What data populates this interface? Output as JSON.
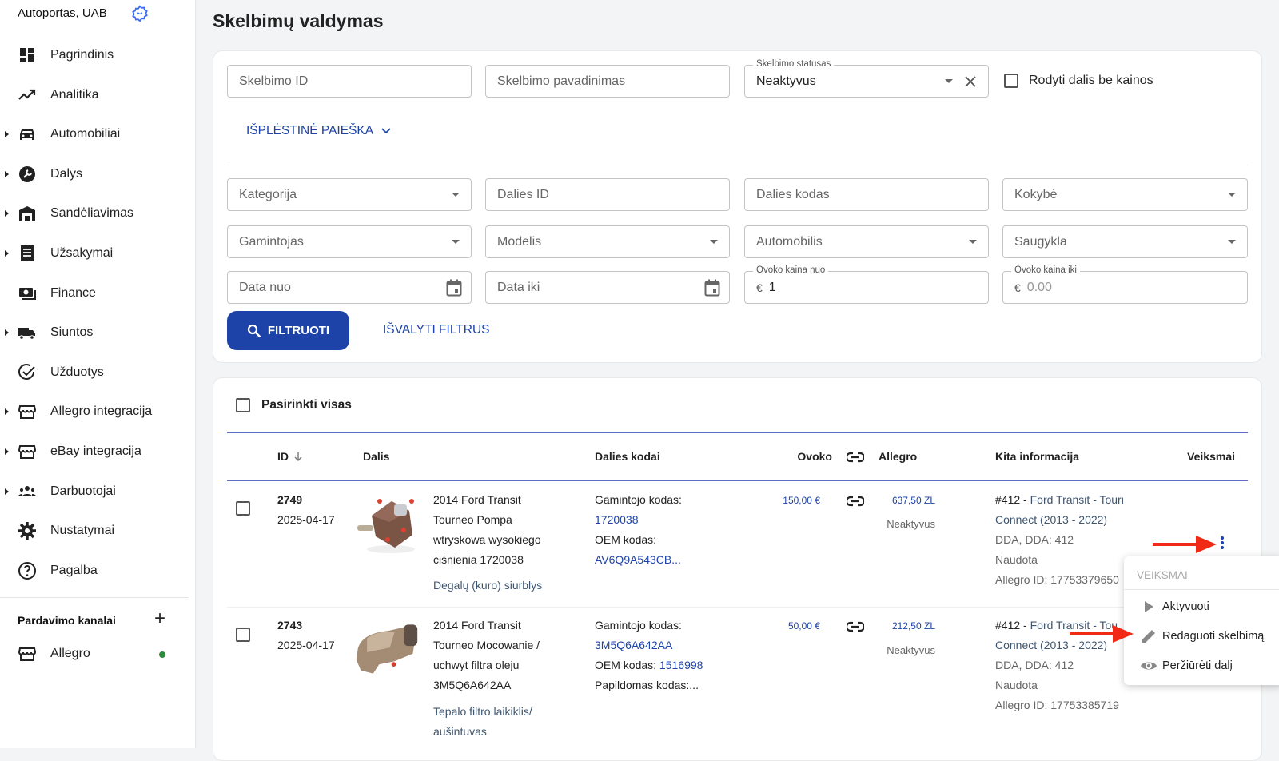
{
  "sidebar": {
    "company": "Autoportas, UAB",
    "items": [
      {
        "label": "Pagrindinis",
        "icon": "dashboard-icon",
        "expandable": false
      },
      {
        "label": "Analitika",
        "icon": "trending-up-icon",
        "expandable": false
      },
      {
        "label": "Automobiliai",
        "icon": "car-icon",
        "expandable": true
      },
      {
        "label": "Dalys",
        "icon": "wrench-icon",
        "expandable": true
      },
      {
        "label": "Sandėliavimas",
        "icon": "warehouse-icon",
        "expandable": true
      },
      {
        "label": "Užsakymai",
        "icon": "receipt-icon",
        "expandable": true
      },
      {
        "label": "Finance",
        "icon": "money-icon",
        "expandable": false
      },
      {
        "label": "Siuntos",
        "icon": "truck-icon",
        "expandable": true
      },
      {
        "label": "Užduotys",
        "icon": "task-check-icon",
        "expandable": false
      },
      {
        "label": "Allegro integracija",
        "icon": "store-icon",
        "expandable": true
      },
      {
        "label": "eBay integracija",
        "icon": "store-icon",
        "expandable": true
      },
      {
        "label": "Darbuotojai",
        "icon": "people-icon",
        "expandable": true
      },
      {
        "label": "Nustatymai",
        "icon": "gear-icon",
        "expandable": false
      },
      {
        "label": "Pagalba",
        "icon": "help-icon",
        "expandable": false
      }
    ],
    "sales_channels_title": "Pardavimo kanalai",
    "channels": [
      {
        "label": "Allegro",
        "status": "active",
        "status_color": "#2e8b3a"
      }
    ]
  },
  "page": {
    "title": "Skelbimų valdymas"
  },
  "filters": {
    "listing_id": {
      "placeholder": "Skelbimo ID"
    },
    "listing_name": {
      "placeholder": "Skelbimo pavadinimas"
    },
    "listing_status": {
      "label": "Skelbimo statusas",
      "value": "Neaktyvus"
    },
    "show_no_price": {
      "label": "Rodyti dalis be kainos",
      "checked": false
    },
    "advanced_search": "IŠPLĖSTINĖ PAIEŠKA",
    "category": {
      "placeholder": "Kategorija"
    },
    "part_id": {
      "placeholder": "Dalies ID"
    },
    "part_code": {
      "placeholder": "Dalies kodas"
    },
    "quality": {
      "placeholder": "Kokybė"
    },
    "manufacturer": {
      "placeholder": "Gamintojas"
    },
    "model": {
      "placeholder": "Modelis"
    },
    "car": {
      "placeholder": "Automobilis"
    },
    "storage": {
      "placeholder": "Saugykla"
    },
    "date_from": {
      "placeholder": "Data nuo"
    },
    "date_to": {
      "placeholder": "Data iki"
    },
    "price_from": {
      "label": "Ovoko kaina nuo",
      "currency": "€",
      "value": "1"
    },
    "price_to": {
      "label": "Ovoko kaina iki",
      "currency": "€",
      "placeholder": "0.00"
    },
    "filter_button": "FILTRUOTI",
    "clear_button": "IŠVALYTI FILTRUS"
  },
  "table": {
    "select_all": "Pasirinkti visas",
    "columns": {
      "id": "ID",
      "part": "Dalis",
      "codes": "Dalies kodai",
      "ovoko": "Ovoko",
      "allegro": "Allegro",
      "other": "Kita informacija",
      "actions": "Veiksmai"
    },
    "rows": [
      {
        "id": "2749",
        "date": "2025-04-17",
        "title_lines": [
          "2014 Ford Transit",
          "Tourneo Pompa",
          "wtryskowa wysokiego",
          "ciśnienia 1720038"
        ],
        "category": "Degalų (kuro) siurblys",
        "codes": {
          "mfr_label": "Gamintojo kodas:",
          "mfr_code": "1720038",
          "oem_label": "OEM kodas:",
          "oem_code": "AV6Q9A543CB..."
        },
        "ovoko_price": "150,00 €",
        "allegro_price": "637,50 ZL",
        "allegro_status": "Neaktyvus",
        "car_id": "#412",
        "car_sep": " - ",
        "car_name_1": "Ford Transit - Tourneo",
        "car_name_2": "Connect (2013 - 2022)",
        "engine": "DDA, DDA: 412",
        "condition": "Naudota",
        "allegro_id": "Allegro ID: 17753379650"
      },
      {
        "id": "2743",
        "date": "2025-04-17",
        "title_lines": [
          "2014 Ford Transit",
          "Tourneo Mocowanie /",
          "uchwyt filtra oleju",
          "3M5Q6A642AA"
        ],
        "category_lines": [
          "Tepalo filtro laikiklis/",
          "aušintuvas"
        ],
        "codes": {
          "mfr_label": "Gamintojo kodas:",
          "mfr_code": "3M5Q6A642AA",
          "oem_label": "OEM kodas: ",
          "oem_code": "1516998",
          "extra": "Papildomas kodas:..."
        },
        "ovoko_price": "50,00 €",
        "allegro_price": "212,50 ZL",
        "allegro_status": "Neaktyvus",
        "car_id": "#412",
        "car_sep": " - ",
        "car_name_1": "Ford Transit - Tou",
        "car_name_2": "Connect (2013 - 2022)",
        "engine": "DDA, DDA: 412",
        "condition": "Naudota",
        "allegro_id": "Allegro ID: 17753385719"
      }
    ]
  },
  "actions_menu": {
    "header": "VEIKSMAI",
    "items": [
      {
        "label": "Aktyvuoti",
        "icon": "play-icon"
      },
      {
        "label": "Redaguoti skelbimą",
        "icon": "pencil-icon"
      },
      {
        "label": "Peržiūrėti dalį",
        "icon": "eye-icon"
      }
    ]
  },
  "colors": {
    "primary": "#1e43a8",
    "annotation_arrow": "#f02a14",
    "link_slate": "#3f5670"
  }
}
